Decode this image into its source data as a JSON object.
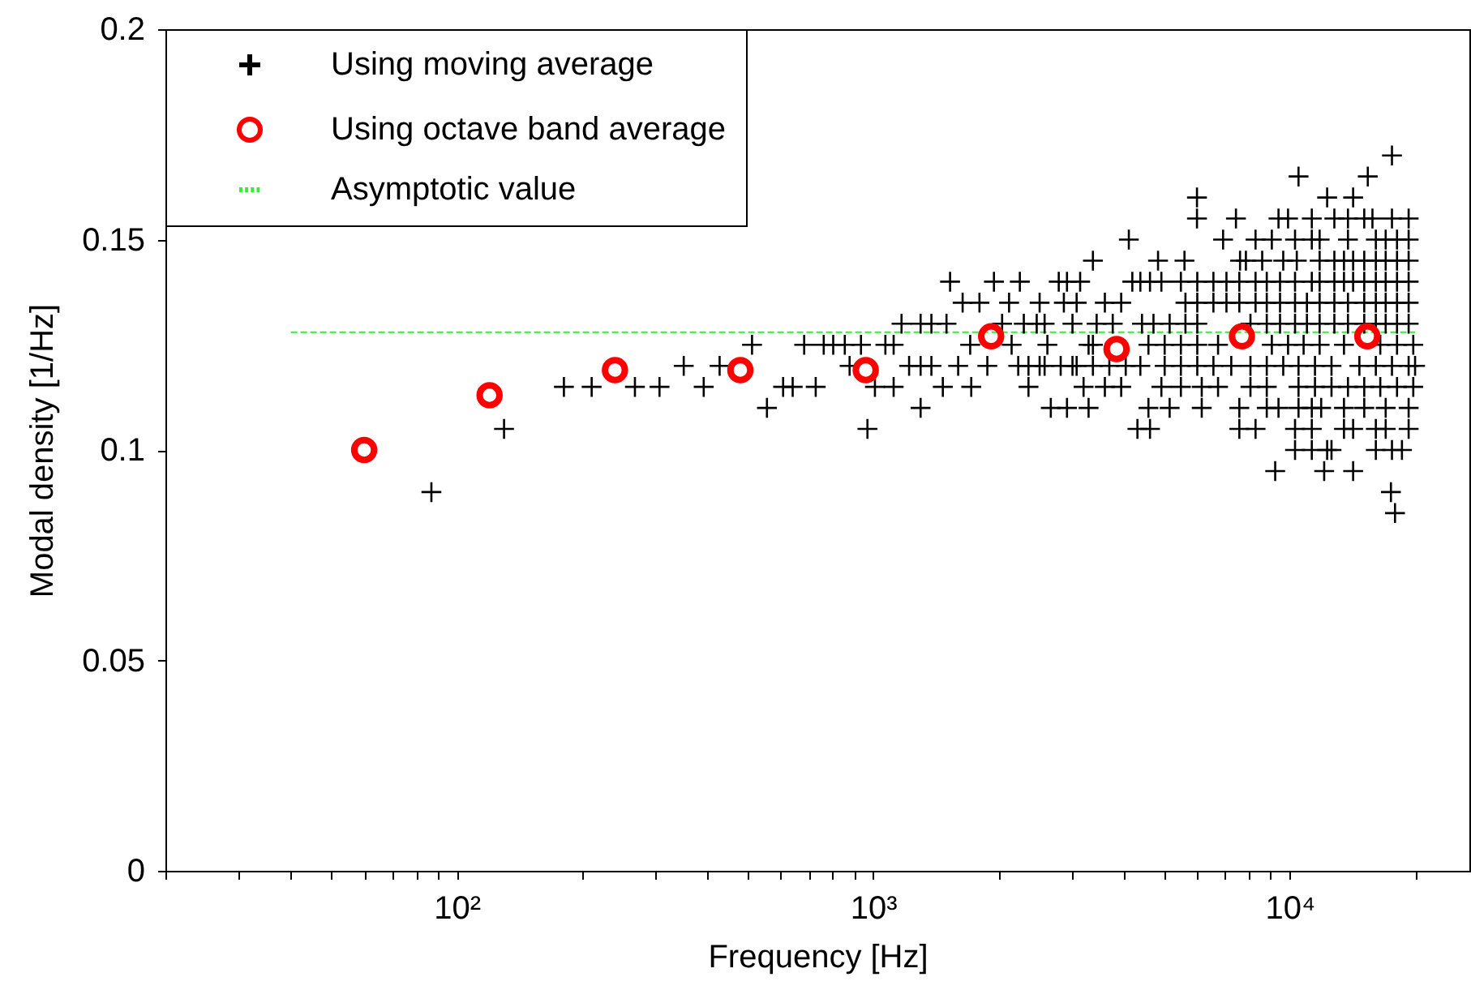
{
  "chart_data": {
    "type": "scatter",
    "xlabel": "Frequency [Hz]",
    "ylabel": "Modal density [1/Hz]",
    "log": "x",
    "xlim": [
      20,
      27000
    ],
    "ylim": [
      0,
      0.2
    ],
    "xticks": [
      {
        "value": 20,
        "label": null
      },
      {
        "value": 30,
        "label": null
      },
      {
        "value": 40,
        "label": null
      },
      {
        "value": 50,
        "label": null
      },
      {
        "value": 60,
        "label": null
      },
      {
        "value": 70,
        "label": null
      },
      {
        "value": 80,
        "label": null
      },
      {
        "value": 90,
        "label": null
      },
      {
        "value": 100,
        "label": "10²"
      },
      {
        "value": 200,
        "label": null
      },
      {
        "value": 300,
        "label": null
      },
      {
        "value": 400,
        "label": null
      },
      {
        "value": 500,
        "label": null
      },
      {
        "value": 600,
        "label": null
      },
      {
        "value": 700,
        "label": null
      },
      {
        "value": 800,
        "label": null
      },
      {
        "value": 900,
        "label": null
      },
      {
        "value": 1000,
        "label": "10³"
      },
      {
        "value": 2000,
        "label": null
      },
      {
        "value": 3000,
        "label": null
      },
      {
        "value": 4000,
        "label": null
      },
      {
        "value": 5000,
        "label": null
      },
      {
        "value": 6000,
        "label": null
      },
      {
        "value": 7000,
        "label": null
      },
      {
        "value": 8000,
        "label": null
      },
      {
        "value": 9000,
        "label": null
      },
      {
        "value": 10000,
        "label": "10⁴"
      },
      {
        "value": 20000,
        "label": null
      }
    ],
    "yticks": [
      0,
      0.05,
      0.1,
      0.15,
      0.2
    ],
    "legend": "top left",
    "series": [
      {
        "name": "Using moving average",
        "color": "#000000",
        "marker": "cross",
        "x": [
          17900,
          87,
          17500,
          9230,
          12100,
          14200,
          10300,
          11300,
          12300,
          12600,
          16100,
          17600,
          18600,
          130,
          969,
          4310,
          4620,
          7570,
          8280,
          10300,
          11300,
          13500,
          14200,
          16100,
          17000,
          19300,
          556,
          1300,
          2670,
          2920,
          3290,
          4580,
          5150,
          6150,
          7570,
          8810,
          9400,
          10500,
          11300,
          11900,
          13500,
          15100,
          17000,
          19300,
          181,
          211,
          268,
          307,
          392,
          608,
          641,
          728,
          1010,
          1120,
          1470,
          1720,
          2360,
          3200,
          3600,
          3940,
          4920,
          5480,
          6150,
          6730,
          8050,
          8810,
          10500,
          11500,
          12600,
          13800,
          15100,
          16500,
          18100,
          19800,
          351,
          428,
          878,
          1220,
          1300,
          1380,
          1600,
          1880,
          2230,
          2360,
          2510,
          2580,
          2820,
          3010,
          3080,
          3370,
          3690,
          4040,
          4380,
          5010,
          5480,
          6000,
          6560,
          7240,
          8050,
          8810,
          9650,
          10500,
          11500,
          12600,
          14700,
          16100,
          17600,
          19300,
          20000,
          512,
          683,
          761,
          802,
          855,
          935,
          1070,
          1120,
          1710,
          2150,
          2620,
          3290,
          3370,
          4580,
          5010,
          5480,
          6000,
          6730,
          9060,
          9910,
          10800,
          11800,
          13500,
          16500,
          18100,
          19800,
          1170,
          1300,
          1380,
          1500,
          2040,
          2300,
          2470,
          2580,
          3010,
          3440,
          3760,
          4420,
          4710,
          5150,
          5620,
          6000,
          8050,
          8810,
          9480,
          10300,
          11000,
          11800,
          12800,
          13800,
          15100,
          16100,
          17000,
          18100,
          19300,
          1640,
          1800,
          2120,
          2510,
          2870,
          3080,
          3600,
          3940,
          5620,
          6000,
          6560,
          7050,
          7570,
          8280,
          8810,
          9480,
          10300,
          11000,
          11800,
          12800,
          13800,
          15100,
          16100,
          17000,
          18100,
          19300,
          1530,
          1950,
          2250,
          2790,
          2920,
          3140,
          4190,
          4380,
          4620,
          4920,
          5480,
          6000,
          6560,
          7050,
          7570,
          8280,
          8810,
          9480,
          10300,
          11300,
          11800,
          12800,
          13500,
          14200,
          15100,
          16100,
          17000,
          18100,
          19300,
          3370,
          4830,
          5590,
          7600,
          7850,
          8590,
          9650,
          10400,
          11800,
          12800,
          13500,
          14200,
          15100,
          16100,
          17000,
          18100,
          19300,
          4110,
          6920,
          8280,
          9060,
          10300,
          11300,
          11800,
          13800,
          16100,
          17000,
          18100,
          19300,
          5990,
          7430,
          9400,
          9910,
          11300,
          12800,
          13800,
          15100,
          15800,
          17600,
          19300,
          5990,
          12300,
          14200,
          10500,
          15400,
          17600
        ],
        "values": [
          0.085,
          0.09,
          0.09,
          0.095,
          0.095,
          0.095,
          0.1,
          0.1,
          0.1,
          0.1,
          0.1,
          0.1,
          0.1,
          0.105,
          0.105,
          0.105,
          0.105,
          0.105,
          0.105,
          0.105,
          0.105,
          0.105,
          0.105,
          0.105,
          0.105,
          0.105,
          0.11,
          0.11,
          0.11,
          0.11,
          0.11,
          0.11,
          0.11,
          0.11,
          0.11,
          0.11,
          0.11,
          0.11,
          0.11,
          0.11,
          0.11,
          0.11,
          0.11,
          0.11,
          0.115,
          0.115,
          0.115,
          0.115,
          0.115,
          0.115,
          0.115,
          0.115,
          0.115,
          0.115,
          0.115,
          0.115,
          0.115,
          0.115,
          0.115,
          0.115,
          0.115,
          0.115,
          0.115,
          0.115,
          0.115,
          0.115,
          0.115,
          0.115,
          0.115,
          0.115,
          0.115,
          0.115,
          0.115,
          0.115,
          0.12,
          0.12,
          0.12,
          0.12,
          0.12,
          0.12,
          0.12,
          0.12,
          0.12,
          0.12,
          0.12,
          0.12,
          0.12,
          0.12,
          0.12,
          0.12,
          0.12,
          0.12,
          0.12,
          0.12,
          0.12,
          0.12,
          0.12,
          0.12,
          0.12,
          0.12,
          0.12,
          0.12,
          0.12,
          0.12,
          0.12,
          0.12,
          0.12,
          0.12,
          0.12,
          0.125,
          0.125,
          0.125,
          0.125,
          0.125,
          0.125,
          0.125,
          0.125,
          0.125,
          0.125,
          0.125,
          0.125,
          0.125,
          0.125,
          0.125,
          0.125,
          0.125,
          0.125,
          0.125,
          0.125,
          0.125,
          0.125,
          0.125,
          0.125,
          0.125,
          0.125,
          0.13,
          0.13,
          0.13,
          0.13,
          0.13,
          0.13,
          0.13,
          0.13,
          0.13,
          0.13,
          0.13,
          0.13,
          0.13,
          0.13,
          0.13,
          0.13,
          0.13,
          0.13,
          0.13,
          0.13,
          0.13,
          0.13,
          0.13,
          0.13,
          0.13,
          0.13,
          0.13,
          0.13,
          0.13,
          0.135,
          0.135,
          0.135,
          0.135,
          0.135,
          0.135,
          0.135,
          0.135,
          0.135,
          0.135,
          0.135,
          0.135,
          0.135,
          0.135,
          0.135,
          0.135,
          0.135,
          0.135,
          0.135,
          0.135,
          0.135,
          0.135,
          0.135,
          0.135,
          0.135,
          0.135,
          0.14,
          0.14,
          0.14,
          0.14,
          0.14,
          0.14,
          0.14,
          0.14,
          0.14,
          0.14,
          0.14,
          0.14,
          0.14,
          0.14,
          0.14,
          0.14,
          0.14,
          0.14,
          0.14,
          0.14,
          0.14,
          0.14,
          0.14,
          0.14,
          0.14,
          0.14,
          0.14,
          0.14,
          0.14,
          0.145,
          0.145,
          0.145,
          0.145,
          0.145,
          0.145,
          0.145,
          0.145,
          0.145,
          0.145,
          0.145,
          0.145,
          0.145,
          0.145,
          0.145,
          0.145,
          0.145,
          0.15,
          0.15,
          0.15,
          0.15,
          0.15,
          0.15,
          0.15,
          0.15,
          0.15,
          0.15,
          0.15,
          0.15,
          0.155,
          0.155,
          0.155,
          0.155,
          0.155,
          0.155,
          0.155,
          0.155,
          0.155,
          0.155,
          0.155,
          0.16,
          0.16,
          0.16,
          0.165,
          0.165,
          0.17
        ]
      },
      {
        "name": "Using octave band average",
        "color": "#ff0000",
        "marker": "circle",
        "x": [
          60,
          120,
          240,
          480,
          960,
          1920,
          3840,
          7680,
          15360
        ],
        "values": [
          0.1,
          0.113,
          0.119,
          0.119,
          0.119,
          0.127,
          0.124,
          0.127,
          0.127
        ]
      },
      {
        "name": "Asymptotic value",
        "color": "#33ee33",
        "type": "line",
        "line_style": "dashed",
        "x": [
          40,
          20000
        ],
        "values": [
          0.128,
          0.128
        ]
      }
    ]
  }
}
